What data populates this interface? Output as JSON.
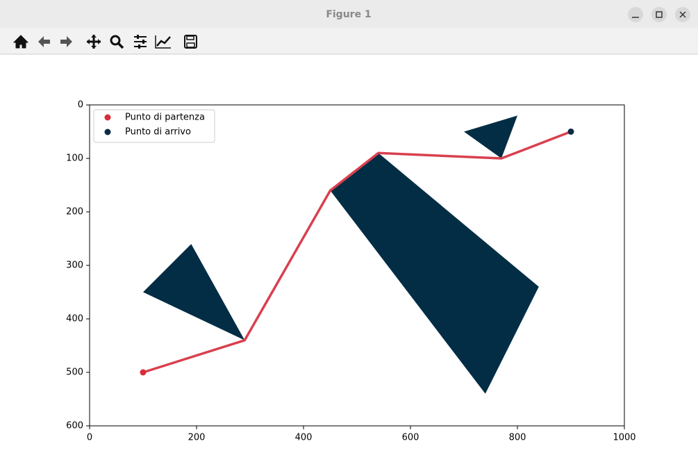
{
  "window": {
    "title": "Figure 1"
  },
  "chart_data": {
    "type": "line",
    "xlim": [
      0,
      1000
    ],
    "ylim": [
      600,
      0
    ],
    "xticks": [
      0,
      200,
      400,
      600,
      800,
      1000
    ],
    "yticks": [
      0,
      100,
      200,
      300,
      400,
      500,
      600
    ],
    "legend": "upper left",
    "path": {
      "color": "#d9404e",
      "x": [
        100,
        290,
        450,
        540,
        770,
        900
      ],
      "y": [
        500,
        440,
        160,
        90,
        100,
        50
      ]
    },
    "obstacles": {
      "color": "#022d45",
      "shapes": [
        {
          "x": [
            100,
            190,
            290
          ],
          "y": [
            350,
            260,
            440
          ]
        },
        {
          "x": [
            450,
            540,
            840,
            740
          ],
          "y": [
            160,
            90,
            340,
            540
          ]
        },
        {
          "x": [
            700,
            800,
            770
          ],
          "y": [
            50,
            20,
            100
          ]
        }
      ]
    },
    "points": [
      {
        "name": "Punto di partenza",
        "color": "#d62d3a",
        "x": 100,
        "y": 500
      },
      {
        "name": "Punto di arrivo",
        "color": "#0d2b45",
        "x": 900,
        "y": 50
      }
    ]
  }
}
